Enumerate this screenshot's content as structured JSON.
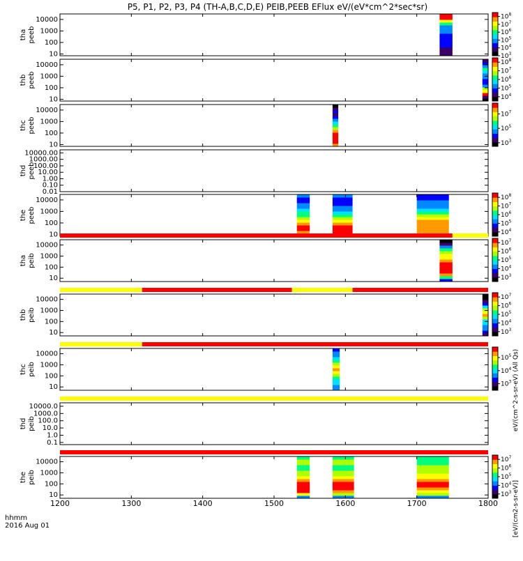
{
  "chart_data": {
    "type": "heatmap",
    "title": "P5, P1, P2, P3, P4 (TH-A,B,C,D,E) PEIB,PEEB EFlux eV/(eV*cm^2*sec*sr)",
    "x_axis": {
      "range": [
        1200,
        1800
      ],
      "ticks": [
        1200,
        1300,
        1400,
        1500,
        1600,
        1700,
        1800
      ],
      "tick_labels": [
        "1200",
        "1300",
        "1400",
        "1500",
        "1600",
        "1700",
        "1800"
      ],
      "label_line1": "hhmm",
      "label_line2": "2016 Aug 01"
    },
    "colorbar_colors": [
      "#000000",
      "#3a0066",
      "#0000ff",
      "#0088ff",
      "#00e0ff",
      "#00ff80",
      "#b0ff00",
      "#ffff00",
      "#ff9900",
      "#ff0000"
    ],
    "panels": [
      {
        "label_line1": "tha",
        "label_line2": "peeb",
        "y_scale": "log",
        "y_range": [
          7,
          30000
        ],
        "y_tick_values": [
          10,
          100,
          1000,
          10000
        ],
        "y_tick_labels": [
          "10",
          "100",
          "1000",
          "10000"
        ],
        "colorbar_tick_labels": [
          "10^3",
          "10^4",
          "10^5",
          "10^6",
          "10^7",
          "10^8"
        ],
        "colorbar_log_range": [
          3,
          8.5
        ],
        "spectra": [
          {
            "x_start": 1732,
            "x_end": 1750,
            "levels": [
              1,
              1,
              1,
              2,
              2,
              2,
              2,
              2,
              3,
              3,
              3,
              5,
              7,
              9,
              9
            ]
          }
        ],
        "mode_bar": null
      },
      {
        "label_line1": "thb",
        "label_line2": "peeb",
        "y_scale": "log",
        "y_range": [
          7,
          30000
        ],
        "y_tick_values": [
          10,
          100,
          1000,
          10000
        ],
        "y_tick_labels": [
          "10",
          "100",
          "1000",
          "10000"
        ],
        "colorbar_tick_labels": [
          "10^4",
          "10^5",
          "10^6",
          "10^7",
          "10^8"
        ],
        "colorbar_log_range": [
          3.5,
          8.5
        ],
        "spectra": [
          {
            "x_start": 1792,
            "x_end": 1800,
            "levels": [
              0,
              1,
              9,
              7,
              6,
              3,
              2,
              2,
              3,
              3,
              4,
              5,
              3,
              2,
              1
            ]
          }
        ],
        "mode_bar": null
      },
      {
        "label_line1": "thc",
        "label_line2": "peeb",
        "y_scale": "log",
        "y_range": [
          7,
          30000
        ],
        "y_tick_values": [
          10,
          100,
          1000,
          10000
        ],
        "y_tick_labels": [
          "10",
          "100",
          "1000",
          "10000"
        ],
        "colorbar_tick_labels": [
          "10^3",
          "10^5",
          "10^7"
        ],
        "colorbar_log_range": [
          2.5,
          8.5
        ],
        "spectra": [
          {
            "x_start": 1582,
            "x_end": 1590,
            "levels": [
              8,
              9,
              9,
              9,
              9,
              8,
              6,
              5,
              4,
              3,
              2,
              1,
              2,
              1,
              0
            ]
          }
        ],
        "mode_bar": null
      },
      {
        "label_line1": "thd",
        "label_line2": "peeb",
        "y_scale": "log",
        "y_range": [
          0.01,
          30000
        ],
        "y_tick_values": [
          0.01,
          0.1,
          1,
          10,
          100,
          1000,
          10000
        ],
        "y_tick_labels": [
          "0.01",
          "0.10",
          "1.00",
          "10.00",
          "100.00",
          "1000.00",
          "10000.00"
        ],
        "colorbar_tick_labels": [],
        "colorbar_log_range": null,
        "spectra": [],
        "mode_bar": null
      },
      {
        "label_line1": "the",
        "label_line2": "peeb",
        "y_scale": "log",
        "y_range": [
          7,
          30000
        ],
        "y_tick_values": [
          10,
          100,
          1000,
          10000
        ],
        "y_tick_labels": [
          "10",
          "100",
          "1000",
          "10000"
        ],
        "colorbar_tick_labels": [
          "10^4",
          "10^5",
          "10^6",
          "10^7",
          "10^8"
        ],
        "colorbar_log_range": [
          3.5,
          8.5
        ],
        "spectra": [
          {
            "x_start": 1532,
            "x_end": 1550,
            "levels": [
              0,
              8,
              9,
              9,
              8,
              7,
              6,
              5,
              5,
              4,
              3,
              3,
              2,
              2,
              3
            ]
          },
          {
            "x_start": 1582,
            "x_end": 1610,
            "levels": [
              0,
              9,
              9,
              9,
              8,
              7,
              6,
              5,
              4,
              3,
              3,
              2,
              2,
              2,
              3
            ]
          },
          {
            "x_start": 1700,
            "x_end": 1745,
            "levels": [
              1,
              8,
              8,
              8,
              8,
              8,
              7,
              6,
              5,
              4,
              3,
              3,
              3,
              2,
              2
            ]
          }
        ],
        "mode_bar": null
      },
      {
        "label_line1": "tha",
        "label_line2": "peib",
        "y_scale": "log",
        "y_range": [
          5,
          30000
        ],
        "y_tick_values": [
          10,
          100,
          1000,
          10000
        ],
        "y_tick_labels": [
          "10",
          "100",
          "1000",
          "10000"
        ],
        "colorbar_tick_labels": [
          "10^3",
          "10^4",
          "10^5",
          "10^6",
          "10^7"
        ],
        "colorbar_log_range": [
          2.5,
          7.5
        ],
        "spectra": [
          {
            "x_start": 1732,
            "x_end": 1750,
            "levels": [
              2,
              5,
              8,
              9,
              9,
              9,
              9,
              8,
              7,
              7,
              6,
              5,
              3,
              1,
              0
            ]
          }
        ],
        "mode_bar": [
          {
            "x_start": 1200,
            "x_end": 1750,
            "color": "#ff0000"
          },
          {
            "x_start": 1750,
            "x_end": 1800,
            "color": "#ffff00"
          }
        ]
      },
      {
        "label_line1": "thb",
        "label_line2": "peib",
        "y_scale": "log",
        "y_range": [
          5,
          30000
        ],
        "y_tick_values": [
          10,
          100,
          1000,
          10000
        ],
        "y_tick_labels": [
          "10",
          "100",
          "1000",
          "10000"
        ],
        "colorbar_tick_labels": [
          "10^3",
          "10^4",
          "10^5",
          "10^6",
          "10^7"
        ],
        "colorbar_log_range": [
          2.5,
          7.5
        ],
        "spectra": [
          {
            "x_start": 1792,
            "x_end": 1800,
            "levels": [
              1,
              2,
              3,
              3,
              4,
              4,
              6,
              8,
              7,
              6,
              4,
              2,
              1,
              0,
              0
            ]
          }
        ],
        "mode_bar": [
          {
            "x_start": 1200,
            "x_end": 1315,
            "color": "#ffff00"
          },
          {
            "x_start": 1315,
            "x_end": 1525,
            "color": "#ff0000"
          },
          {
            "x_start": 1525,
            "x_end": 1610,
            "color": "#ffff00"
          },
          {
            "x_start": 1610,
            "x_end": 1800,
            "color": "#ff0000"
          }
        ]
      },
      {
        "label_line1": "thc",
        "label_line2": "peib",
        "y_scale": "log",
        "y_range": [
          5,
          30000
        ],
        "y_tick_values": [
          10,
          100,
          1000,
          10000
        ],
        "y_tick_labels": [
          "10",
          "100",
          "1000",
          "10000"
        ],
        "colorbar_tick_labels": [
          "10^3",
          "10^4",
          "10^5"
        ],
        "colorbar_log_range": [
          2.5,
          5.8
        ],
        "spectra": [
          {
            "x_start": 1582,
            "x_end": 1592,
            "levels": [
              3,
              3,
              4,
              4,
              5,
              6,
              7,
              8,
              7,
              6,
              5,
              4,
              3,
              3,
              2
            ]
          }
        ],
        "mode_bar": [
          {
            "x_start": 1200,
            "x_end": 1315,
            "color": "#ffff00"
          },
          {
            "x_start": 1315,
            "x_end": 1800,
            "color": "#ff0000"
          }
        ]
      },
      {
        "label_line1": "thd",
        "label_line2": "peib",
        "y_scale": "log",
        "y_range": [
          0.05,
          30000
        ],
        "y_tick_values": [
          0.1,
          1,
          10,
          100,
          1000,
          10000
        ],
        "y_tick_labels": [
          "0.1",
          "1.0",
          "10.0",
          "100.0",
          "1000.0",
          "10000.0"
        ],
        "colorbar_tick_labels": [],
        "colorbar_log_range": null,
        "spectra": [],
        "mode_bar": [
          {
            "x_start": 1200,
            "x_end": 1800,
            "color": "#ffff00"
          }
        ]
      },
      {
        "label_line1": "the",
        "label_line2": "peib",
        "y_scale": "log",
        "y_range": [
          5,
          30000
        ],
        "y_tick_values": [
          10,
          100,
          1000,
          10000
        ],
        "y_tick_labels": [
          "10",
          "100",
          "1000",
          "10000"
        ],
        "colorbar_tick_labels": [
          "10^3",
          "10^4",
          "10^5",
          "10^6",
          "10^7"
        ],
        "colorbar_log_range": [
          2.5,
          7.5
        ],
        "spectra": [
          {
            "x_start": 1532,
            "x_end": 1550,
            "levels": [
              3,
              7,
              9,
              9,
              9,
              9,
              8,
              7,
              6,
              6,
              5,
              5,
              6,
              6,
              5
            ]
          },
          {
            "x_start": 1582,
            "x_end": 1612,
            "levels": [
              3,
              6,
              8,
              9,
              9,
              9,
              8,
              7,
              6,
              6,
              5,
              5,
              6,
              6,
              5
            ]
          },
          {
            "x_start": 1700,
            "x_end": 1745,
            "levels": [
              3,
              6,
              7,
              8,
              9,
              9,
              8,
              7,
              7,
              6,
              6,
              6,
              5,
              5,
              5
            ]
          }
        ],
        "mode_bar": [
          {
            "x_start": 1200,
            "x_end": 1800,
            "color": "#ff0000"
          }
        ]
      }
    ],
    "colorbar_unit_labels": [
      "eV/(cm^2-s-sr-eV) (All Qs)",
      "[eV/(cm2-s-sr-eV)]"
    ]
  }
}
